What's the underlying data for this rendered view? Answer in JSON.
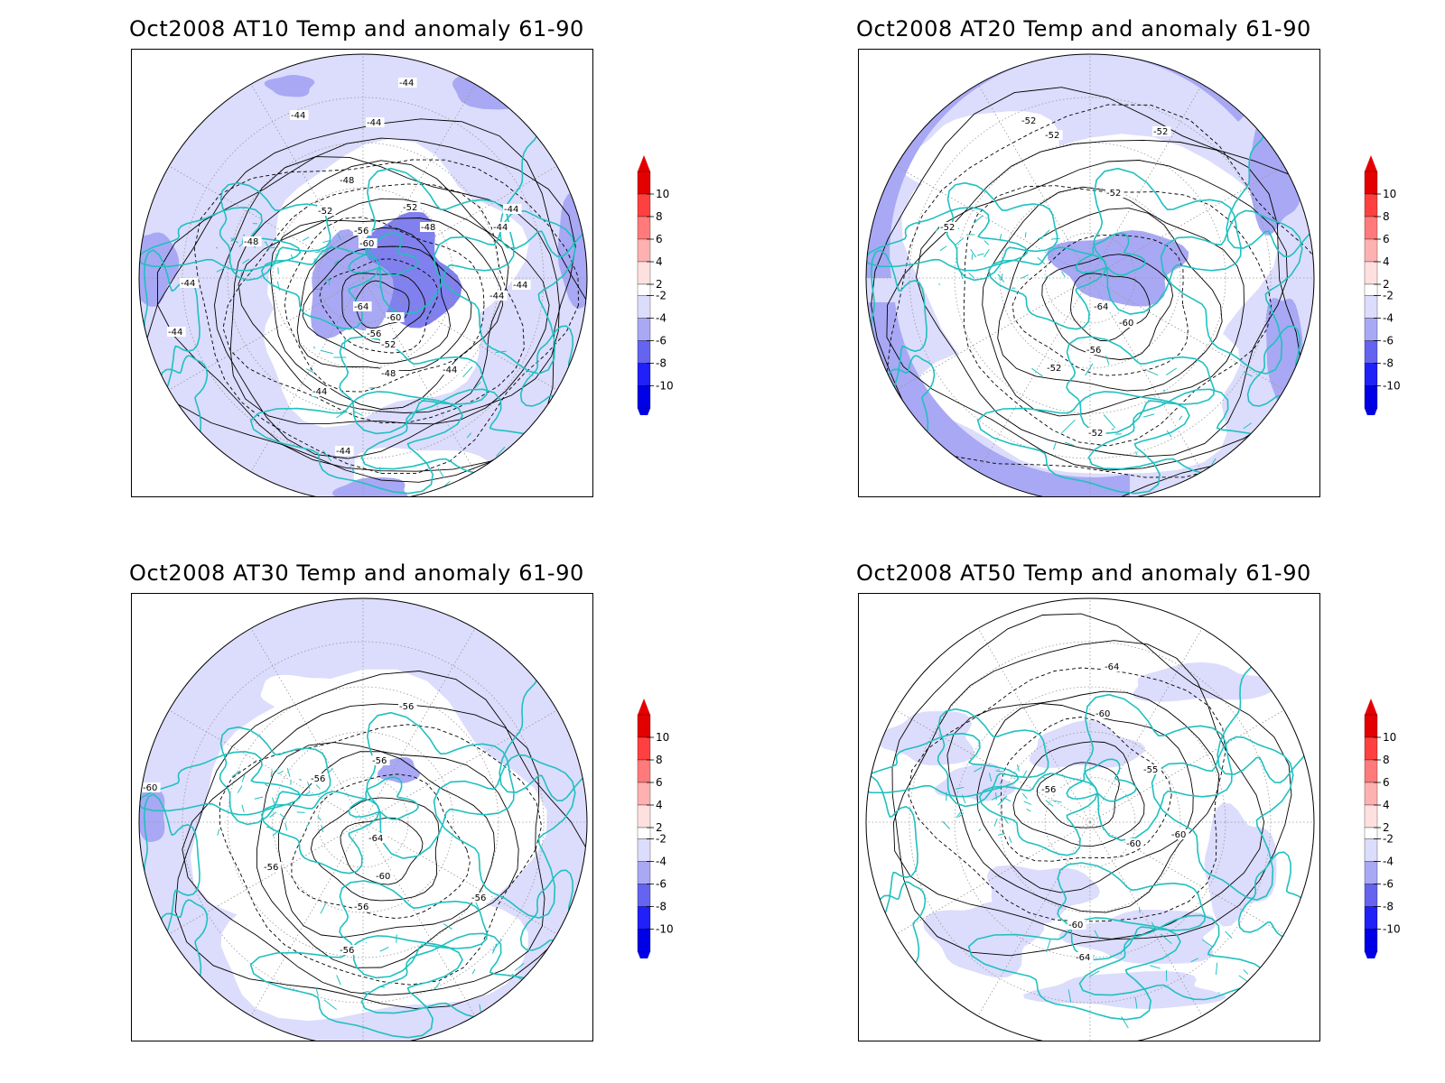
{
  "panels": [
    {
      "title": "Oct2008 AT10 Temp and anomaly 61-90",
      "contour_labels": [
        "-44",
        "-44",
        "-44",
        "-48",
        "-48",
        "-52",
        "-52",
        "-56",
        "-60",
        "-44",
        "-44",
        "-48",
        "-44",
        "-44",
        "-64",
        "-60",
        "-56",
        "-52",
        "-48",
        "-44",
        "-44",
        "-44",
        "-44",
        "-44"
      ]
    },
    {
      "title": "Oct2008 AT20 Temp and anomaly 61-90",
      "contour_labels": [
        "-52",
        "-52",
        "-52",
        "-52",
        "-52",
        "-64",
        "-60",
        "-56",
        "-52",
        "-52"
      ]
    },
    {
      "title": "Oct2008 AT30 Temp and anomaly 61-90",
      "contour_labels": [
        "-56",
        "-56",
        "-56",
        "-60",
        "-64",
        "-56",
        "-60",
        "-56",
        "-56",
        "-56"
      ]
    },
    {
      "title": "Oct2008 AT50 Temp and anomaly 61-90",
      "contour_labels": [
        "-64",
        "-60",
        "-55",
        "-56",
        "-60",
        "-60",
        "-60",
        "-64"
      ]
    }
  ],
  "colorbar": {
    "labels": [
      "10",
      "8",
      "6",
      "4",
      "2",
      "-2",
      "-4",
      "-6",
      "-8",
      "-10"
    ],
    "colors": [
      "#e50000",
      "#ff4040",
      "#ff7a7a",
      "#ffb0b0",
      "#ffe0e0",
      "#ffffff",
      "#dcdcfc",
      "#a8a8f4",
      "#6464f0",
      "#2020f8",
      "#0000e6"
    ]
  },
  "colors": {
    "coast": "#20c0c0",
    "contour": "#000000",
    "grid": "#999999",
    "anom_light": "#dcdcfc",
    "anom_mid": "#a8a8f4",
    "anom_dark": "#8080ee"
  }
}
